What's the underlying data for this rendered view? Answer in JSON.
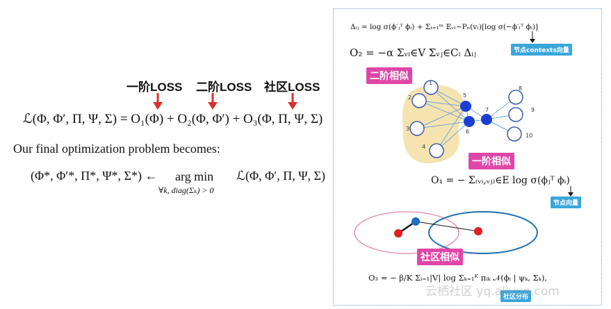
{
  "left": {
    "loss_labels": [
      "一阶LOSS",
      "二阶LOSS",
      "社区LOSS"
    ],
    "main_equation": "ℒ(Φ, Φ′, Π, Ψ, Σ) = O₁(Φ) + O₂(Φ, Φ′) + O₃(Φ, Π, Ψ, Σ)",
    "sentence": "Our final optimization problem becomes:",
    "opt_lhs": "(Φ*, Φ′*, Π*, Ψ*, Σ*) ←",
    "opt_operator": "arg min",
    "opt_subscript": "∀k, diag(Σₖ) > 0",
    "opt_rhs": "ℒ(Φ, Φ′, Π, Ψ, Σ)"
  },
  "panel": {
    "delta_formula": "Δᵢⱼ = log σ(ϕ′ⱼᵀ ϕᵢ) + Σₜ₌₁ᵐ 𝔼ᵥₗ∼Pₙ(vₗ)[log σ(−ϕ′ₗᵀ ϕᵢ)]",
    "context_tag": "节点contexts向量",
    "o2_formula": "O₂ = −α Σᵥᵢ∈V Σᵥⱼ∈Cᵢ Δᵢⱼ",
    "second_order_tag": "二阶相似",
    "first_order_tag": "一阶相似",
    "o1_formula": "O₁ = − Σ₍ᵥᵢ,ᵥⱼ₎∈E log σ(ϕⱼᵀ ϕᵢ)",
    "node_vec_tag": "节点向量",
    "community_tag": "社区相似",
    "o3_formula": "O₃ = − β/K Σᵢ₌₁|V| log Σₖ₌₁ᴷ πᵢₖ 𝒩(ϕᵢ | ψₖ, Σₖ),",
    "community_dist_tag": "社区分布",
    "node_labels": [
      "1",
      "2",
      "3",
      "4",
      "5",
      "6",
      "7",
      "8",
      "9",
      "10"
    ],
    "watermark": "云栖社区 yq.aliyun.com"
  },
  "colors": {
    "red": "#d9302c",
    "pink": "#e046a8",
    "blue_tag": "#3aa6dc",
    "graph_blue": "#1a3fd6",
    "blob": "#f5e3b0"
  }
}
